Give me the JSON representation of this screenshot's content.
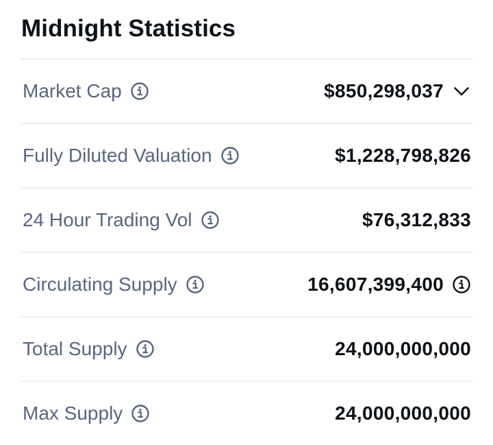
{
  "header": {
    "title": "Midnight Statistics"
  },
  "stats": {
    "market_cap": {
      "label": "Market Cap",
      "value": "$850,298,037"
    },
    "fdv": {
      "label": "Fully Diluted Valuation",
      "value": "$1,228,798,826"
    },
    "volume_24h": {
      "label": "24 Hour Trading Vol",
      "value": "$76,312,833"
    },
    "circulating_supply": {
      "label": "Circulating Supply",
      "value": "16,607,399,400"
    },
    "total_supply": {
      "label": "Total Supply",
      "value": "24,000,000,000"
    },
    "max_supply": {
      "label": "Max Supply",
      "value": "24,000,000,000"
    }
  },
  "icons": {
    "info": "info-icon",
    "expand": "chevron-down-icon"
  },
  "colors": {
    "label": "#58667e",
    "value": "#0d1217",
    "divider": "#eef0f3"
  }
}
